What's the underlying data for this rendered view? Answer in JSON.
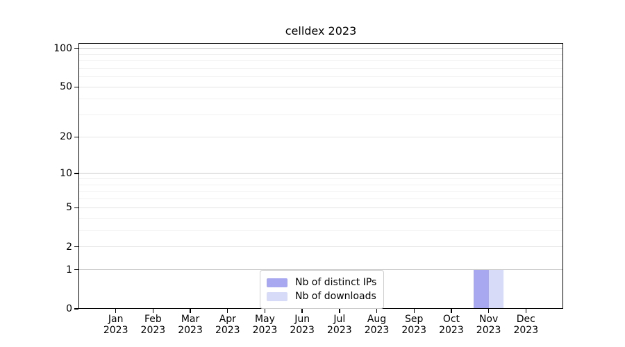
{
  "chart_data": {
    "type": "bar",
    "title": "celldex 2023",
    "categories": [
      {
        "month": "Jan",
        "year": "2023"
      },
      {
        "month": "Feb",
        "year": "2023"
      },
      {
        "month": "Mar",
        "year": "2023"
      },
      {
        "month": "Apr",
        "year": "2023"
      },
      {
        "month": "May",
        "year": "2023"
      },
      {
        "month": "Jun",
        "year": "2023"
      },
      {
        "month": "Jul",
        "year": "2023"
      },
      {
        "month": "Aug",
        "year": "2023"
      },
      {
        "month": "Sep",
        "year": "2023"
      },
      {
        "month": "Oct",
        "year": "2023"
      },
      {
        "month": "Nov",
        "year": "2023"
      },
      {
        "month": "Dec",
        "year": "2023"
      }
    ],
    "series": [
      {
        "name": "Nb of distinct IPs",
        "color": "#a8a8f0",
        "values": [
          0,
          0,
          0,
          0,
          0,
          0,
          0,
          0,
          0,
          0,
          1,
          0
        ]
      },
      {
        "name": "Nb of downloads",
        "color": "#d8dbf8",
        "values": [
          0,
          0,
          0,
          0,
          0,
          0,
          0,
          0,
          0,
          0,
          1,
          0
        ]
      }
    ],
    "xlabel": "",
    "ylabel": "",
    "yscale": "log1p",
    "ylim": [
      0,
      110
    ],
    "yticks": [
      0,
      1,
      2,
      5,
      10,
      20,
      50,
      100
    ],
    "decade_gridlines": [
      1,
      10,
      100
    ],
    "minor_gridlines": [
      3,
      4,
      6,
      7,
      8,
      9,
      30,
      40,
      60,
      70,
      80,
      90
    ],
    "grid": "horizontal",
    "legend_position": "lower center",
    "colors": {
      "decade_gridline": "#c8c8c8",
      "major_gridline": "#e3e3e3",
      "minor_gridline": "#f1f1f1",
      "spine": "#000000",
      "text": "#000000",
      "background": "#ffffff"
    }
  }
}
